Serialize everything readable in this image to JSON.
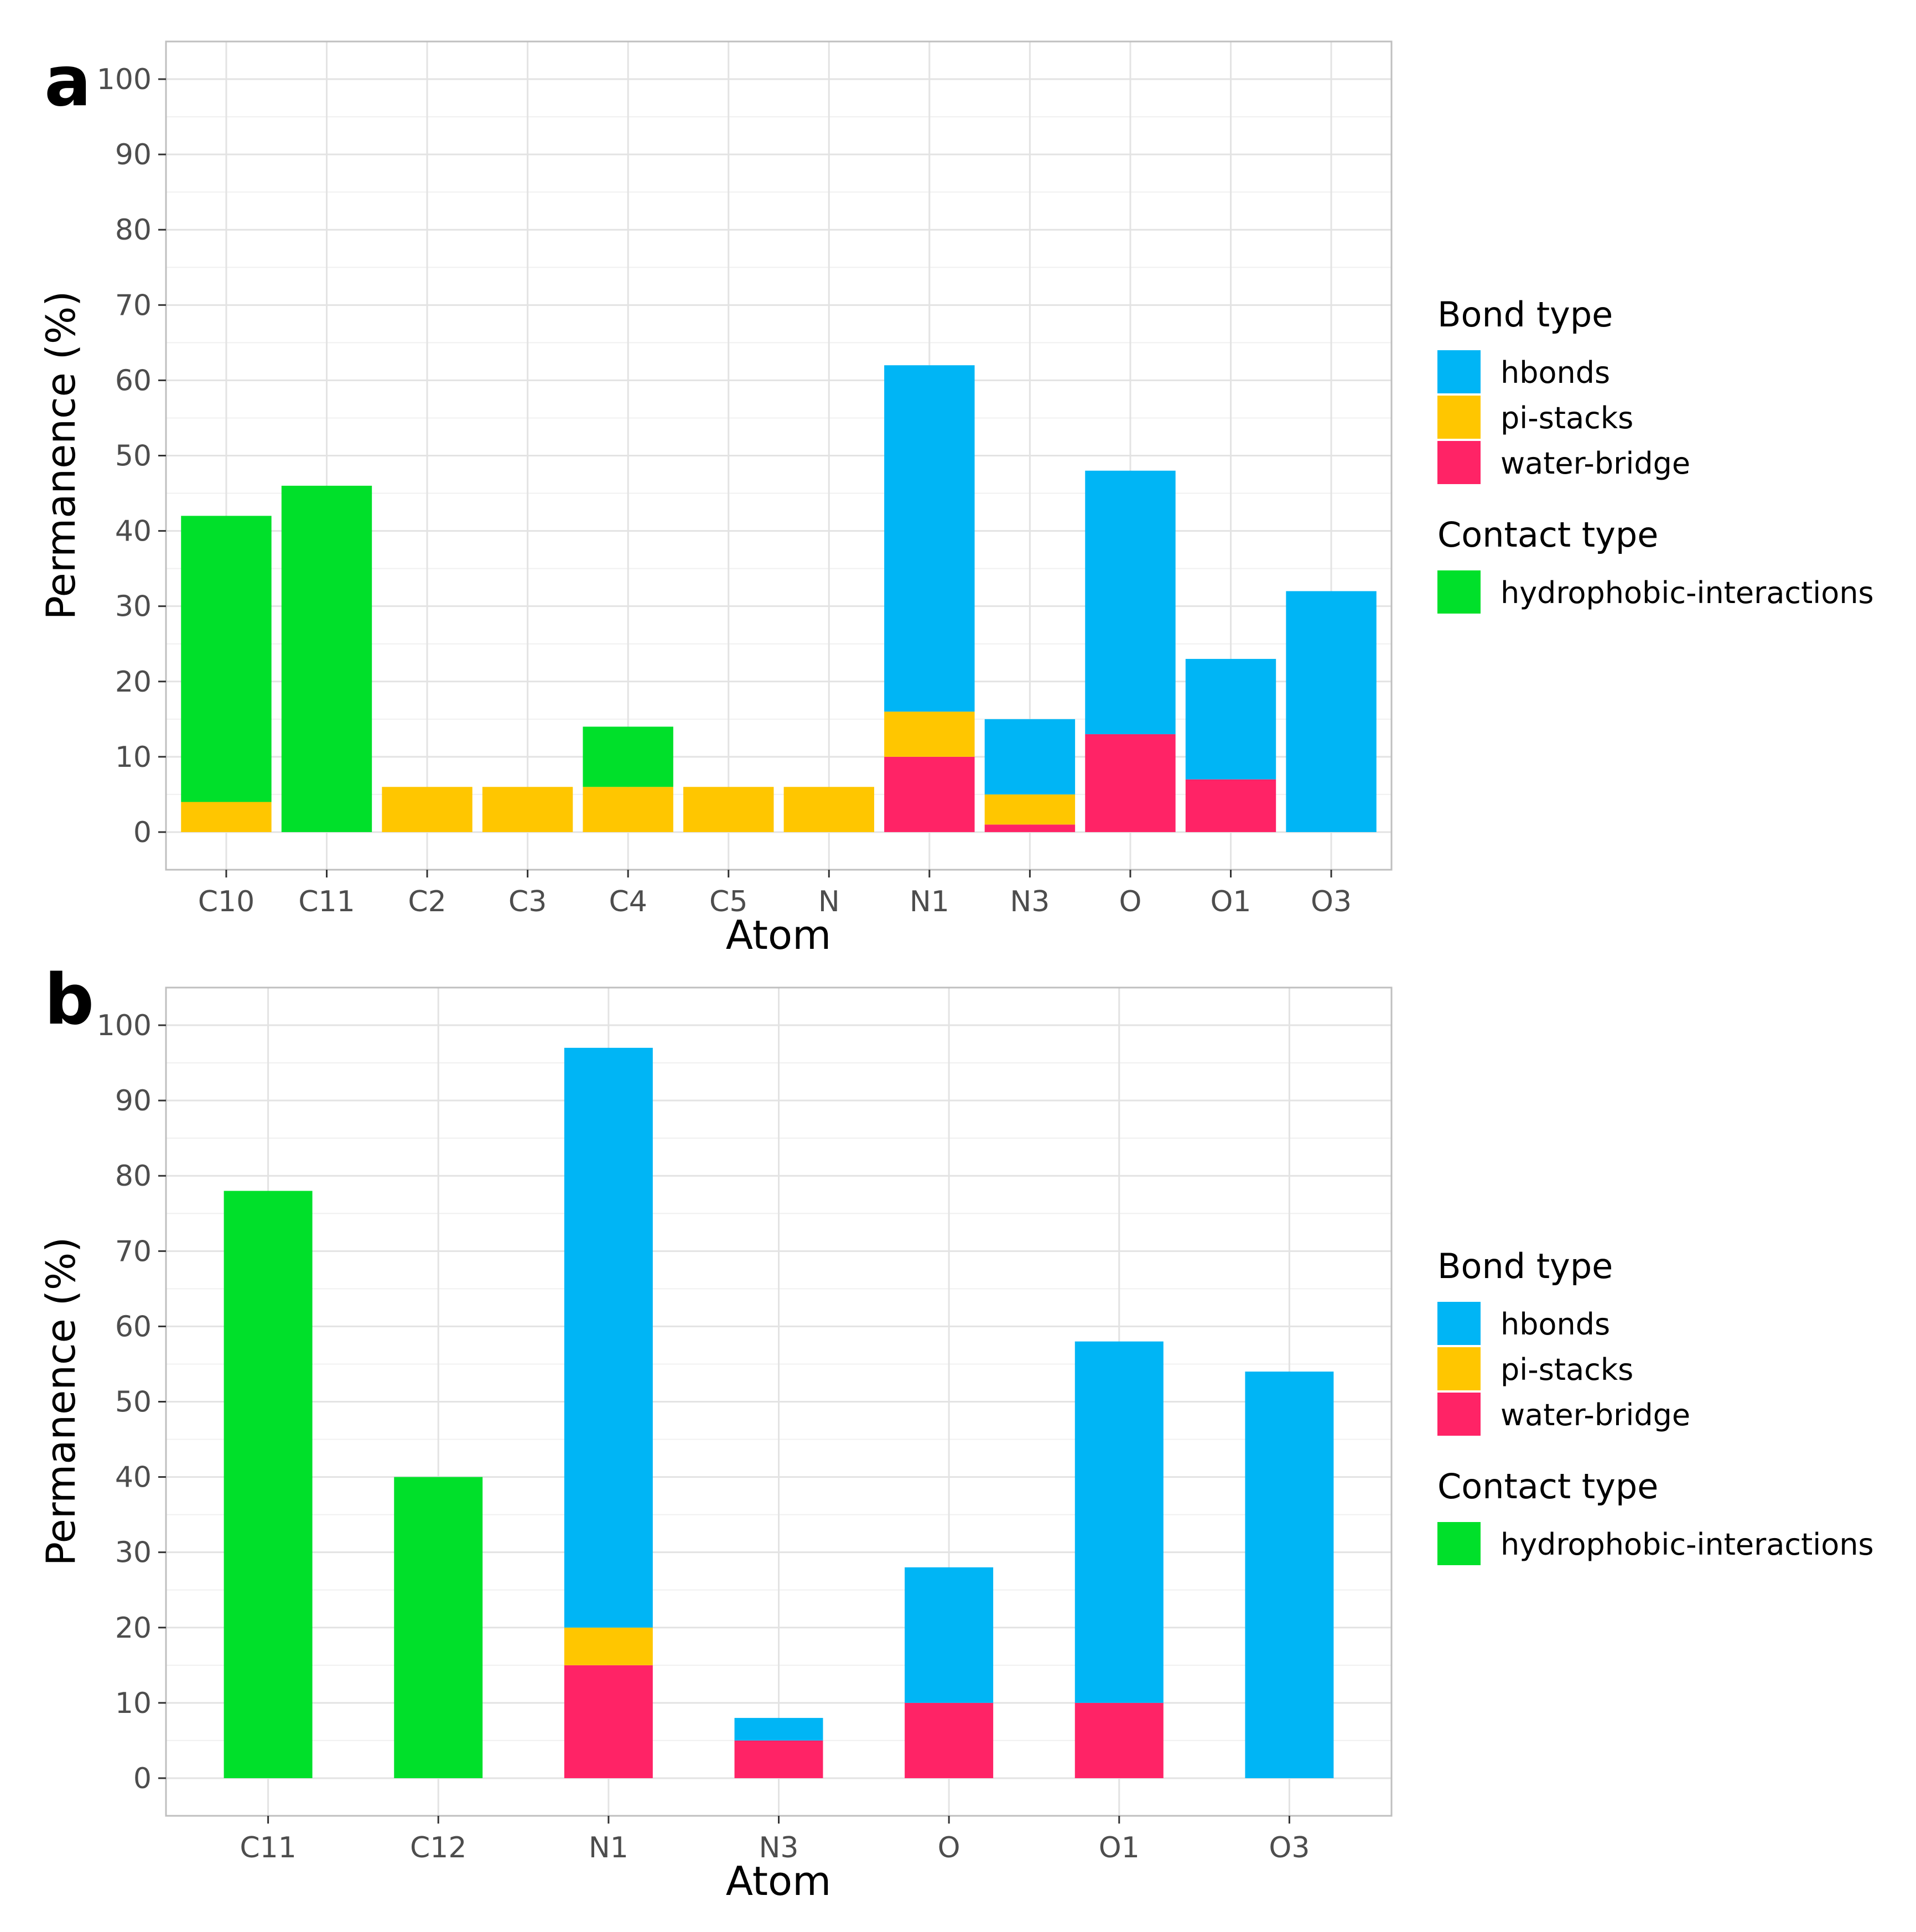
{
  "colors": {
    "hbonds": "#00B5F5",
    "pi-stacks": "#FFC600",
    "water-bridge": "#FF2366",
    "hydrophobic-interactions": "#00E02A"
  },
  "legend": {
    "bond_type_title": "Bond type",
    "bond_types": [
      "hbonds",
      "pi-stacks",
      "water-bridge"
    ],
    "contact_type_title": "Contact type",
    "contact_types": [
      "hydrophobic-interactions"
    ]
  },
  "chart_data": [
    {
      "panel": "a",
      "type": "bar",
      "stacked": true,
      "xlabel": "Atom",
      "ylabel": "Permanence (%)",
      "ylim": [
        -5,
        105
      ],
      "yticks": [
        0,
        10,
        20,
        30,
        40,
        50,
        60,
        70,
        80,
        90,
        100
      ],
      "grid": true,
      "legend_position": "right",
      "categories": [
        "C10",
        "C11",
        "C2",
        "C3",
        "C4",
        "C5",
        "N",
        "N1",
        "N3",
        "O",
        "O1",
        "O3"
      ],
      "series": [
        {
          "name": "water-bridge",
          "values": [
            0,
            0,
            0,
            0,
            0,
            0,
            0,
            10,
            1,
            13,
            7,
            0
          ]
        },
        {
          "name": "pi-stacks",
          "values": [
            4,
            0,
            6,
            6,
            6,
            6,
            6,
            6,
            4,
            0,
            0,
            0
          ]
        },
        {
          "name": "hbonds",
          "values": [
            0,
            0,
            0,
            0,
            0,
            0,
            0,
            46,
            10,
            35,
            16,
            32
          ]
        },
        {
          "name": "hydrophobic-interactions",
          "values": [
            38,
            46,
            0,
            0,
            8,
            0,
            0,
            0,
            0,
            0,
            0,
            0
          ]
        }
      ]
    },
    {
      "panel": "b",
      "type": "bar",
      "stacked": true,
      "xlabel": "Atom",
      "ylabel": "Permanence (%)",
      "ylim": [
        -5,
        105
      ],
      "yticks": [
        0,
        10,
        20,
        30,
        40,
        50,
        60,
        70,
        80,
        90,
        100
      ],
      "grid": true,
      "legend_position": "right",
      "categories": [
        "C11",
        "C12",
        "N1",
        "N3",
        "O",
        "O1",
        "O3"
      ],
      "series": [
        {
          "name": "water-bridge",
          "values": [
            0,
            0,
            15,
            5,
            10,
            10,
            0
          ]
        },
        {
          "name": "pi-stacks",
          "values": [
            0,
            0,
            5,
            0,
            0,
            0,
            0
          ]
        },
        {
          "name": "hbonds",
          "values": [
            0,
            0,
            77,
            3,
            18,
            48,
            54
          ]
        },
        {
          "name": "hydrophobic-interactions",
          "values": [
            78,
            40,
            0,
            0,
            0,
            0,
            0
          ]
        }
      ]
    }
  ]
}
